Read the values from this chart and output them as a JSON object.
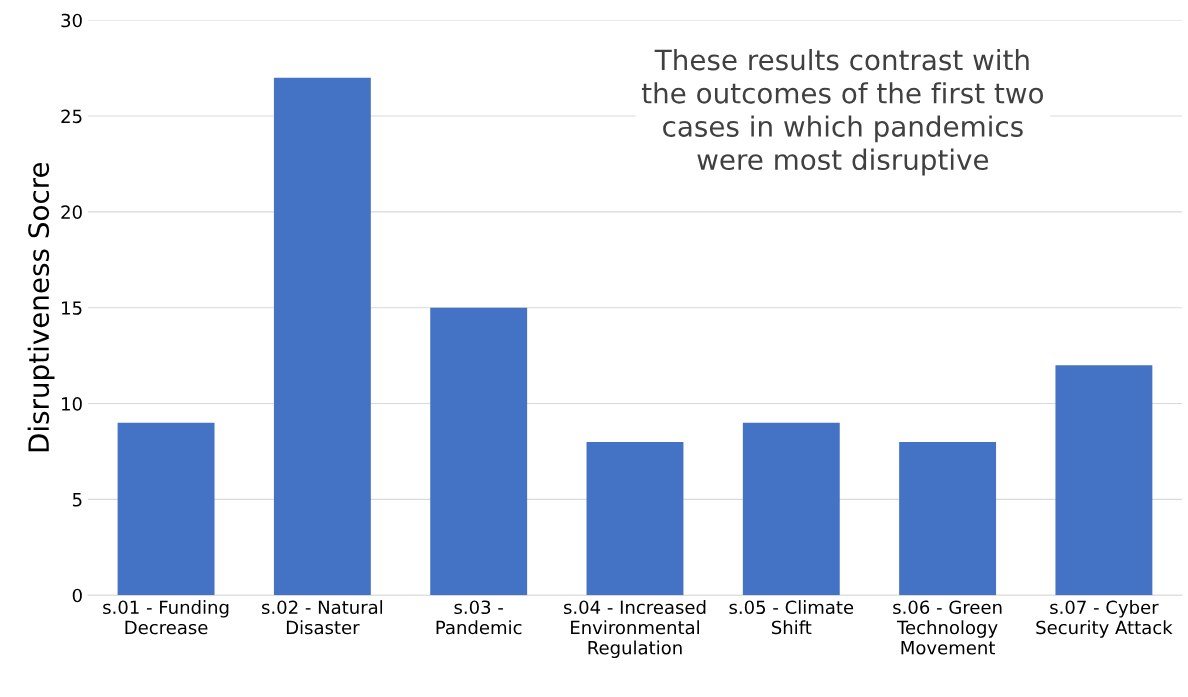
{
  "chart_data": {
    "type": "bar",
    "ylabel": "Disruptiveness Socre",
    "categories": [
      "s.01 - Funding\nDecrease",
      "s.02 - Natural\nDisaster",
      "s.03 -\nPandemic",
      "s.04 - Increased\nEnvironmental\nRegulation",
      "s.05 - Climate\nShift",
      "s.06 - Green\nTechnology\nMovement",
      "s.07 - Cyber\nSecurity Attack"
    ],
    "values": [
      9,
      27,
      15,
      8,
      9,
      8,
      12
    ],
    "color": "#4472c4",
    "ylim": [
      0,
      30
    ],
    "yticks": [
      0,
      5,
      10,
      15,
      20,
      25,
      30
    ],
    "grid": "y",
    "annotations": [
      "These results contrast with\nthe outcomes of the first two\ncases in which pandemics\nwere most disruptive"
    ]
  }
}
